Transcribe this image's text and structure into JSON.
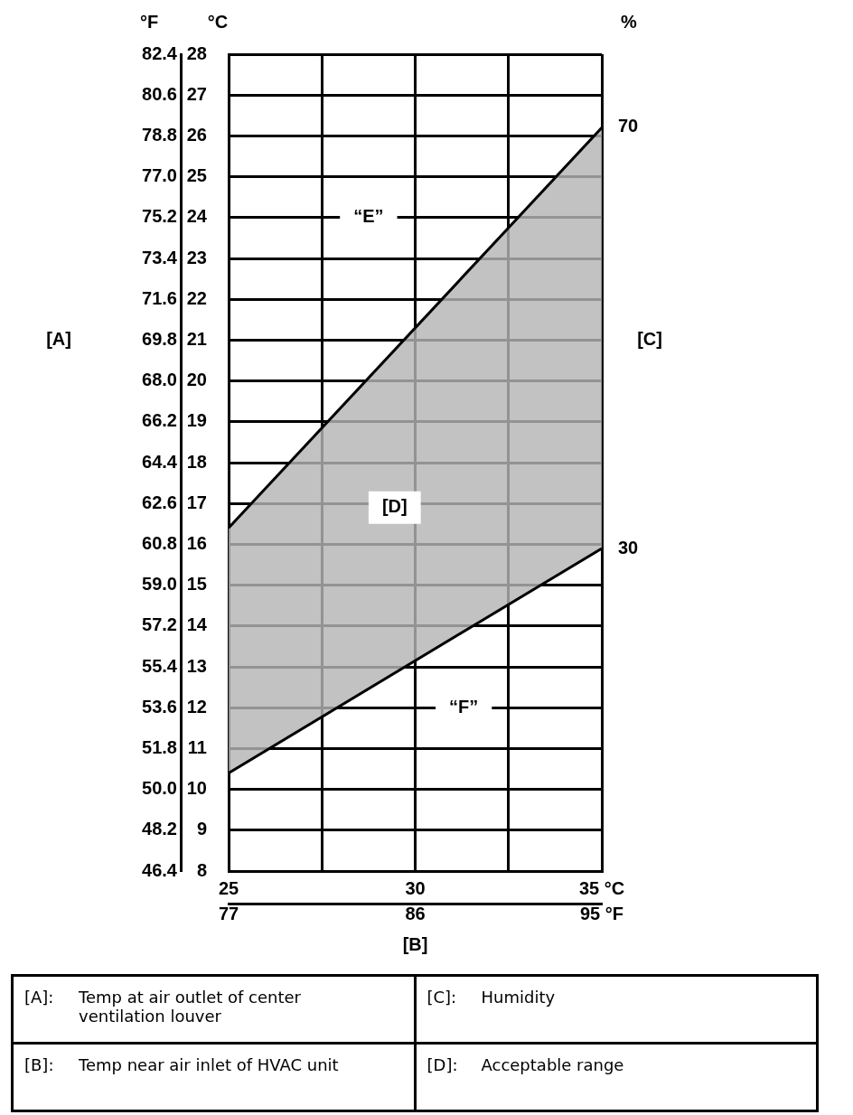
{
  "chart_data": {
    "type": "line",
    "ylabel": "[A]",
    "xlabel": "[B]",
    "x": [
      25,
      35
    ],
    "xlim": [
      25,
      35
    ],
    "xticks": [
      25,
      {
        "value": 27.5,
        "label": null
      },
      30,
      {
        "value": 32.5,
        "label": null
      },
      {
        "value": 35,
        "label": "35 °C"
      }
    ],
    "x2lim": [
      77,
      95
    ],
    "x2ticks": [
      77,
      86,
      {
        "value": 95,
        "label": "95 °F"
      }
    ],
    "y2lim": [
      8,
      28
    ],
    "y2ticks": [
      8,
      9,
      10,
      11,
      12,
      13,
      14,
      15,
      16,
      17,
      18,
      19,
      20,
      21,
      22,
      23,
      24,
      25,
      26,
      27,
      28
    ],
    "ylim": [
      46.4,
      82.4
    ],
    "yticks": [
      46.4,
      48.2,
      {
        "value": 50,
        "label": "50.0"
      },
      51.8,
      53.6,
      55.4,
      57.2,
      {
        "value": 59,
        "label": "59.0"
      },
      60.8,
      62.6,
      64.4,
      66.2,
      {
        "value": 68,
        "label": "68.0"
      },
      69.8,
      71.6,
      73.4,
      75.2,
      {
        "value": 77,
        "label": "77.0"
      },
      78.8,
      80.6,
      82.4
    ],
    "grid": true,
    "series": [
      {
        "type": "line",
        "axis": "y2",
        "color": "#000000",
        "values": [
          10.4,
          15.9
        ]
      },
      {
        "type": "area",
        "axis": "y2",
        "color": "#b4b4b4",
        "values": [
          16.4,
          26.2
        ]
      }
    ],
    "annotations": [
      "°F",
      "°C",
      "%",
      "[C]",
      "“E”",
      "“F”",
      "[D]",
      {
        "text": "70",
        "x": 35,
        "y": 79.2
      },
      {
        "text": "30",
        "x": 35,
        "y": 60.6
      },
      "[A]:",
      "Temp at air outlet of center ventilation louver",
      "[C]:",
      "Humidity",
      "[B]:",
      "Temp near air inlet of HVAC unit",
      "[D]:",
      "Acceptable range"
    ]
  }
}
